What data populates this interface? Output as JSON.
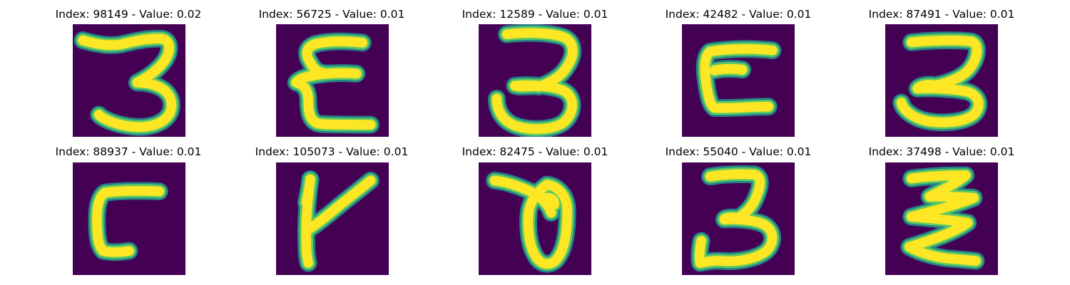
{
  "panels": [
    {
      "caption": "Index: 98149 - Value: 0.02",
      "glyph": "3"
    },
    {
      "caption": "Index: 56725 - Value: 0.01",
      "glyph": "E"
    },
    {
      "caption": "Index: 12589 - Value: 0.01",
      "glyph": "3"
    },
    {
      "caption": "Index: 42482 - Value: 0.01",
      "glyph": "E"
    },
    {
      "caption": "Index: 87491 - Value: 0.01",
      "glyph": "3"
    },
    {
      "caption": "Index: 88937 - Value: 0.01",
      "glyph": "r"
    },
    {
      "caption": "Index: 105073 - Value: 0.01",
      "glyph": "Y"
    },
    {
      "caption": "Index: 82475 - Value: 0.01",
      "glyph": "0"
    },
    {
      "caption": "Index: 55040 - Value: 0.01",
      "glyph": "3"
    },
    {
      "caption": "Index: 37498 - Value: 0.01",
      "glyph": "z"
    }
  ],
  "colors": {
    "background": "#440154",
    "stroke_outer": "#21908d",
    "stroke_mid": "#5ec962",
    "stroke_core": "#fde725"
  }
}
